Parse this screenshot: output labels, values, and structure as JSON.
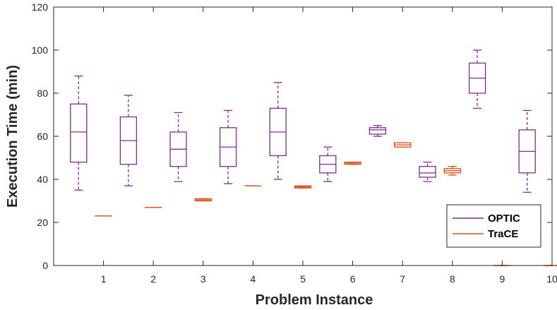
{
  "chart_data": {
    "type": "boxplot",
    "title": "",
    "xlabel": "Problem Instance",
    "ylabel": "Execution Time (min)",
    "xlim": [
      0,
      10
    ],
    "ylim": [
      0,
      120
    ],
    "x_ticks": [
      1,
      2,
      3,
      4,
      5,
      6,
      7,
      8,
      9,
      10
    ],
    "y_ticks": [
      0,
      20,
      40,
      60,
      80,
      100,
      120
    ],
    "grid": false,
    "legend_position": "bottom-right",
    "categories": [
      "1",
      "2",
      "3",
      "4",
      "5",
      "6",
      "7",
      "8",
      "9",
      "10"
    ],
    "series": [
      {
        "name": "OPTIC",
        "color": "#7E2F8E",
        "boxes": [
          {
            "category": 1,
            "min": 35,
            "q1": 48,
            "median": 62,
            "q3": 75,
            "max": 88
          },
          {
            "category": 2,
            "min": 37,
            "q1": 47,
            "median": 58,
            "q3": 69,
            "max": 79
          },
          {
            "category": 3,
            "min": 39,
            "q1": 46,
            "median": 54,
            "q3": 62,
            "max": 71
          },
          {
            "category": 4,
            "min": 38,
            "q1": 46,
            "median": 55,
            "q3": 64,
            "max": 72
          },
          {
            "category": 5,
            "min": 40,
            "q1": 51,
            "median": 62,
            "q3": 73,
            "max": 85
          },
          {
            "category": 6,
            "min": 39,
            "q1": 43,
            "median": 47,
            "q3": 51,
            "max": 55
          },
          {
            "category": 7,
            "min": 60,
            "q1": 61,
            "median": 63,
            "q3": 64,
            "max": 65
          },
          {
            "category": 8,
            "min": 39,
            "q1": 41,
            "median": 43,
            "q3": 46,
            "max": 48
          },
          {
            "category": 9,
            "min": 73,
            "q1": 80,
            "median": 87,
            "q3": 94,
            "max": 100
          },
          {
            "category": 10,
            "min": 34,
            "q1": 43,
            "median": 53,
            "q3": 63,
            "max": 72
          }
        ]
      },
      {
        "name": "TraCE",
        "color": "#D95319",
        "boxes": [
          {
            "category": 1,
            "min": 23,
            "q1": 23,
            "median": 23,
            "q3": 23,
            "max": 23
          },
          {
            "category": 2,
            "min": 27,
            "q1": 27,
            "median": 27,
            "q3": 27,
            "max": 27
          },
          {
            "category": 3,
            "min": 30,
            "q1": 30,
            "median": 30.5,
            "q3": 31,
            "max": 31
          },
          {
            "category": 4,
            "min": 37,
            "q1": 37,
            "median": 37,
            "q3": 37,
            "max": 37
          },
          {
            "category": 5,
            "min": 36,
            "q1": 36,
            "median": 36.5,
            "q3": 37,
            "max": 37
          },
          {
            "category": 6,
            "min": 47,
            "q1": 47,
            "median": 47.5,
            "q3": 48,
            "max": 48
          },
          {
            "category": 7,
            "min": 55,
            "q1": 55,
            "median": 56,
            "q3": 57,
            "max": 57
          },
          {
            "category": 8,
            "min": 42,
            "q1": 43,
            "median": 44,
            "q3": 45,
            "max": 46
          },
          {
            "category": 9,
            "min": 0,
            "q1": 0,
            "median": 0,
            "q3": 0,
            "max": 0
          },
          {
            "category": 10,
            "min": 0,
            "q1": 0,
            "median": 0,
            "q3": 0,
            "max": 0
          }
        ]
      }
    ]
  }
}
